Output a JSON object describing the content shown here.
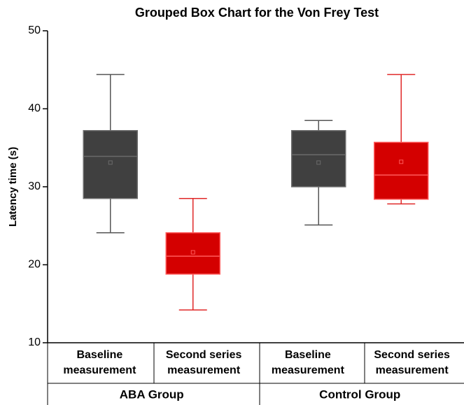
{
  "chart_data": {
    "type": "box",
    "title": "Grouped Box Chart for the Von Frey Test",
    "ylabel": "Latency time (s)",
    "ylim": [
      10,
      50
    ],
    "yticks": [
      10,
      20,
      30,
      40,
      50
    ],
    "groups": [
      {
        "name": "ABA Group",
        "boxes": [
          {
            "category": [
              "Baseline",
              "measurement"
            ],
            "color": "#404040",
            "min": 24.1,
            "q1": 28.5,
            "median": 33.9,
            "q3": 37.2,
            "max": 44.4,
            "mean": 33.1
          },
          {
            "category": [
              "Second series",
              "measurement"
            ],
            "color": "#d40000",
            "min": 14.2,
            "q1": 18.8,
            "median": 21.1,
            "q3": 24.1,
            "max": 28.5,
            "mean": 21.6
          }
        ]
      },
      {
        "name": "Control Group",
        "boxes": [
          {
            "category": [
              "Baseline",
              "measurement"
            ],
            "color": "#404040",
            "min": 25.1,
            "q1": 30.0,
            "median": 34.1,
            "q3": 37.2,
            "max": 38.5,
            "mean": 33.1
          },
          {
            "category": [
              "Second series",
              "measurement"
            ],
            "color": "#d40000",
            "min": 27.8,
            "q1": 28.4,
            "median": 31.5,
            "q3": 35.7,
            "max": 44.4,
            "mean": 33.2
          }
        ]
      }
    ]
  }
}
